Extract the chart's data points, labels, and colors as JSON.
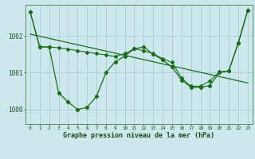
{
  "title": "Graphe pression niveau de la mer (hPa)",
  "background_color": "#cce8ec",
  "grid_color": "#aaccd4",
  "line_color": "#1a6b1a",
  "xlim": [
    -0.5,
    23.5
  ],
  "ylim": [
    999.6,
    1002.85
  ],
  "yticks": [
    1000,
    1001,
    1002
  ],
  "xticks": [
    0,
    1,
    2,
    3,
    4,
    5,
    6,
    7,
    8,
    9,
    10,
    11,
    12,
    13,
    14,
    15,
    16,
    17,
    18,
    19,
    20,
    21,
    22,
    23
  ],
  "series1_wavy": {
    "x": [
      0,
      1,
      2,
      3,
      4,
      5,
      6,
      7,
      8,
      9,
      10,
      11,
      12,
      13,
      14,
      15,
      16,
      17,
      18,
      19,
      20,
      21,
      22,
      23
    ],
    "y": [
      1002.65,
      1001.7,
      1001.7,
      1000.45,
      1000.2,
      1000.0,
      1000.05,
      1000.35,
      1001.0,
      1001.3,
      1001.45,
      1001.65,
      1001.7,
      1001.5,
      1001.35,
      1001.15,
      1000.8,
      1000.6,
      1000.6,
      1000.65,
      1001.0,
      1001.05,
      1001.8,
      1002.7
    ]
  },
  "series2_flat": {
    "x": [
      0,
      1,
      2,
      3,
      4,
      5,
      6,
      7,
      8,
      9,
      10,
      11,
      12,
      13,
      14,
      15,
      16,
      17,
      18,
      19,
      20,
      21,
      22,
      23
    ],
    "y": [
      1002.65,
      1001.7,
      1001.7,
      1001.68,
      1001.64,
      1001.6,
      1001.56,
      1001.52,
      1001.48,
      1001.44,
      1001.52,
      1001.65,
      1001.6,
      1001.52,
      1001.38,
      1001.28,
      1000.85,
      1000.63,
      1000.63,
      1000.78,
      1001.02,
      1001.05,
      1001.82,
      1002.7
    ]
  },
  "trend_line": {
    "x": [
      0,
      23
    ],
    "y": [
      1002.05,
      1000.72
    ]
  }
}
